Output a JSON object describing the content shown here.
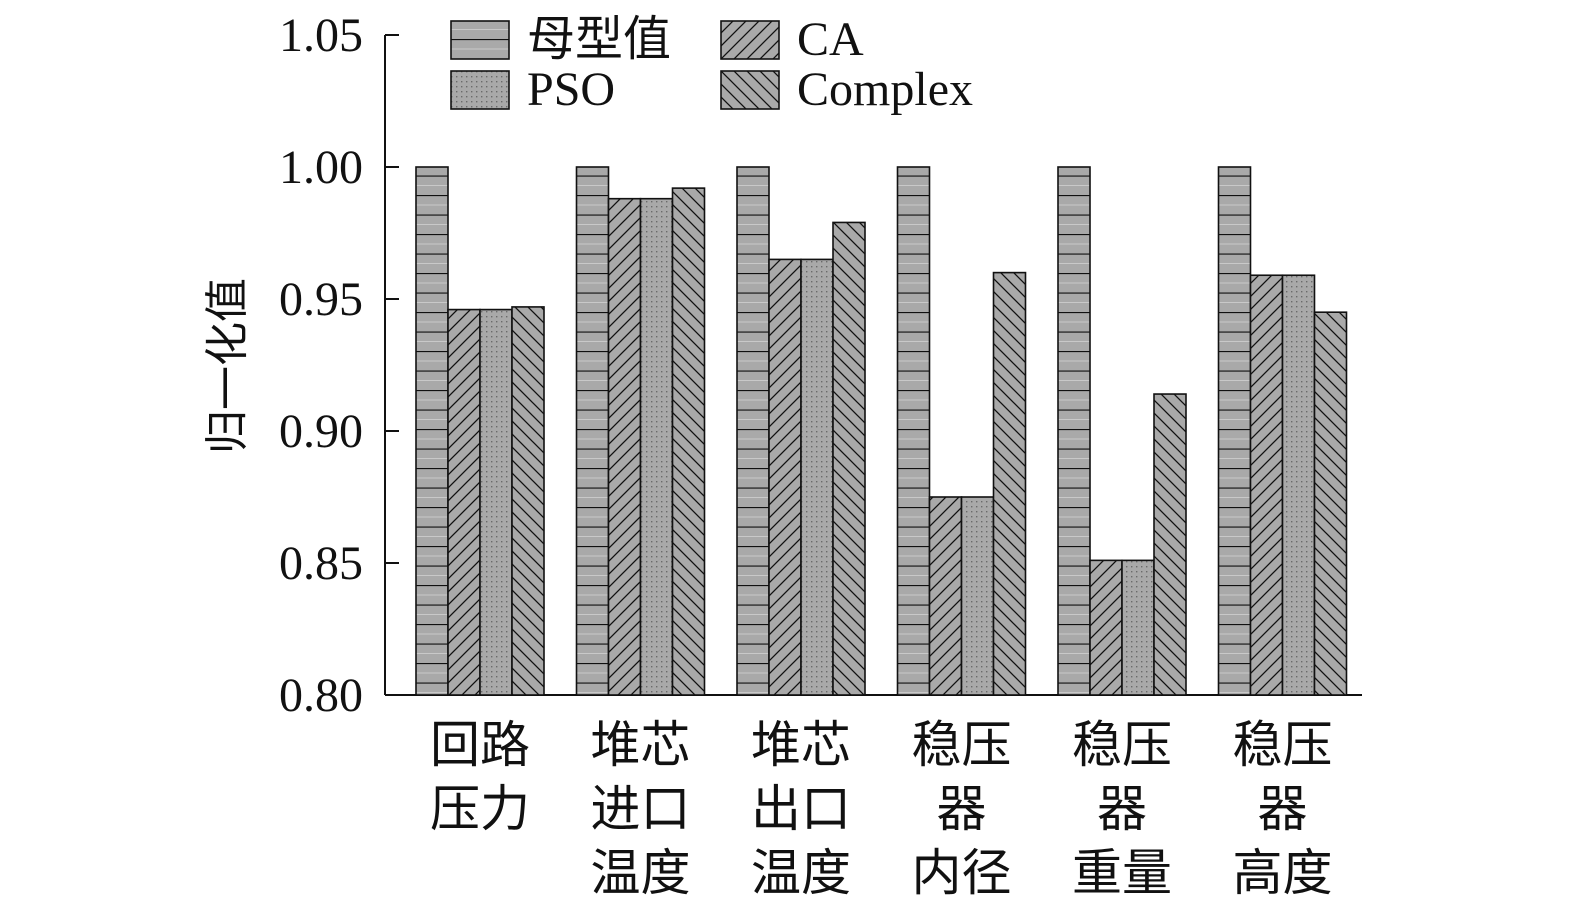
{
  "chart_data": {
    "type": "bar",
    "title": "",
    "xlabel": "",
    "ylabel": "归一化值",
    "ylim": [
      0.8,
      1.05
    ],
    "yticks": [
      "0.80",
      "0.85",
      "0.90",
      "0.95",
      "1.00",
      "1.05"
    ],
    "categories": [
      [
        "回路",
        "压力"
      ],
      [
        "堆芯",
        "进口",
        "温度"
      ],
      [
        "堆芯",
        "出口",
        "温度"
      ],
      [
        "稳压",
        "器",
        "内径"
      ],
      [
        "稳压",
        "器",
        "重量"
      ],
      [
        "稳压",
        "器",
        "高度"
      ]
    ],
    "legend_position": "top",
    "grid": false,
    "series": [
      {
        "name": "母型值",
        "pattern": "horizontal-lines",
        "values": [
          1.0,
          1.0,
          1.0,
          1.0,
          1.0,
          1.0
        ]
      },
      {
        "name": "CA",
        "pattern": "forward-diagonal",
        "values": [
          0.946,
          0.988,
          0.965,
          0.875,
          0.851,
          0.959
        ]
      },
      {
        "name": "PSO",
        "pattern": "dots",
        "values": [
          0.946,
          0.988,
          0.965,
          0.875,
          0.851,
          0.959
        ]
      },
      {
        "name": "Complex",
        "pattern": "backward-diagonal",
        "values": [
          0.947,
          0.992,
          0.979,
          0.96,
          0.914,
          0.945
        ]
      }
    ],
    "colors": {
      "bar_fill": "#a9a9a9",
      "stroke": "#111111"
    }
  }
}
